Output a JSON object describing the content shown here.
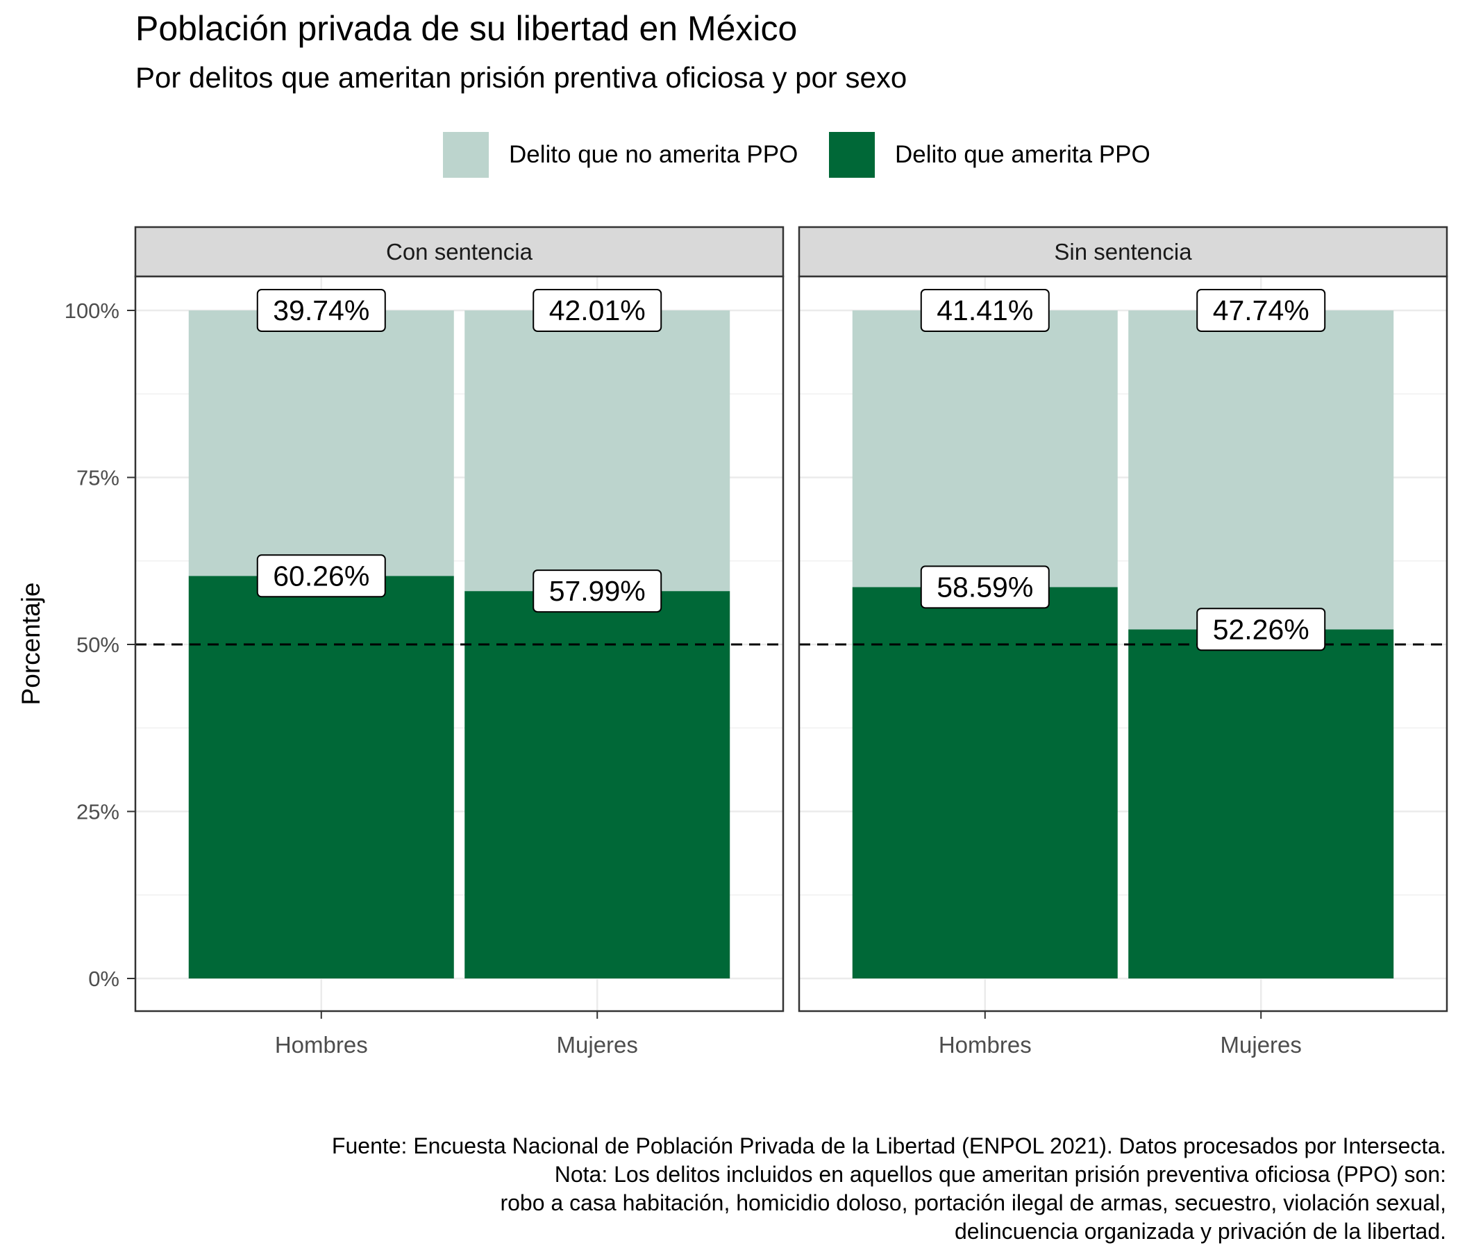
{
  "chart_data": {
    "type": "bar",
    "stacked": true,
    "title": "Población privada de su libertad en México",
    "subtitle": "Por delitos que ameritan prisión prentiva oficiosa y por sexo",
    "xlabel": "",
    "ylabel": "Porcentaje",
    "ylim": [
      0,
      1.05
    ],
    "y_ticks": [
      0,
      0.25,
      0.5,
      0.75,
      1.0
    ],
    "y_tick_labels": [
      "0%",
      "25%",
      "50%",
      "75%",
      "100%"
    ],
    "categories": [
      "Hombres",
      "Mujeres"
    ],
    "legend_position": "top",
    "grid": true,
    "reference_line": {
      "y": 0.5,
      "style": "dashed"
    },
    "series_colors": {
      "Delito que no amerita PPO": "#bcd4cd",
      "Delito que amerita PPO": "#006837"
    },
    "panels": [
      {
        "label": "Con sentencia",
        "series": [
          {
            "name": "Delito que amerita PPO",
            "values": [
              0.6026,
              0.5799
            ],
            "labels": [
              "60.26%",
              "57.99%"
            ]
          },
          {
            "name": "Delito que no amerita PPO",
            "values": [
              0.3974,
              0.4201
            ],
            "labels": [
              "39.74%",
              "42.01%"
            ]
          }
        ]
      },
      {
        "label": "Sin sentencia",
        "series": [
          {
            "name": "Delito que amerita PPO",
            "values": [
              0.5859,
              0.5226
            ],
            "labels": [
              "58.59%",
              "52.26%"
            ]
          },
          {
            "name": "Delito que no amerita PPO",
            "values": [
              0.4141,
              0.4774
            ],
            "labels": [
              "41.41%",
              "47.74%"
            ]
          }
        ]
      }
    ]
  },
  "legend": [
    {
      "label": "Delito que no amerita PPO",
      "color": "#bcd4cd"
    },
    {
      "label": "Delito que amerita PPO",
      "color": "#006837"
    }
  ],
  "caption": [
    "Fuente: Encuesta Nacional de Población Privada de la Libertad (ENPOL 2021). Datos procesados por Intersecta.",
    "Nota: Los delitos incluidos en aquellos que ameritan prisión preventiva oficiosa (PPO) son:",
    "robo a casa habitación, homicidio doloso, portación ilegal de armas, secuestro, violación sexual,",
    "delincuencia organizada y privación de la libertad."
  ]
}
